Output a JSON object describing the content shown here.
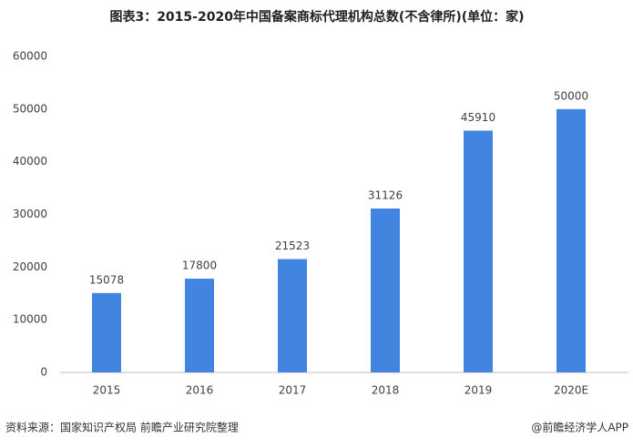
{
  "chart_data": {
    "type": "bar",
    "title": "图表3：2015-2020年中国备案商标代理机构总数(不含律所)(单位：家)",
    "categories": [
      "2015",
      "2016",
      "2017",
      "2018",
      "2019",
      "2020E"
    ],
    "values": [
      15078,
      17800,
      21523,
      31126,
      45910,
      50000
    ],
    "color": "#4285e0",
    "ylim": [
      0,
      60000
    ],
    "yticks": [
      0,
      10000,
      20000,
      30000,
      40000,
      50000,
      60000
    ],
    "grid": false,
    "source": "资料来源：国家知识产权局 前瞻产业研究院整理",
    "credit": "@前瞻经济学人APP"
  }
}
